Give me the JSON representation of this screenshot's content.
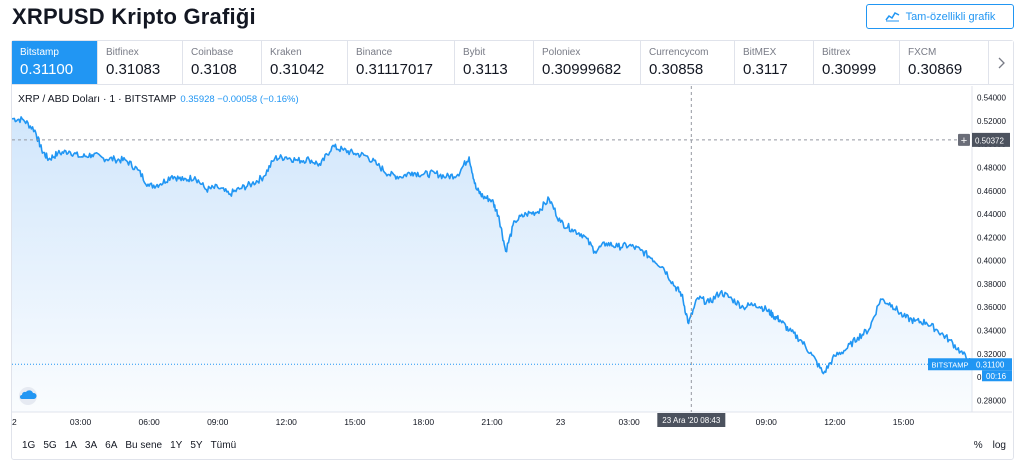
{
  "page": {
    "title": "XRPUSD Kripto Grafiği",
    "full_chart_button": "Tam-özellikli grafik"
  },
  "exchanges": [
    {
      "name": "Bitstamp",
      "price": "0.31100",
      "active": true
    },
    {
      "name": "Bitfinex",
      "price": "0.31083"
    },
    {
      "name": "Coinbase",
      "price": "0.3108"
    },
    {
      "name": "Kraken",
      "price": "0.31042"
    },
    {
      "name": "Binance",
      "price": "0.31117017"
    },
    {
      "name": "Bybit",
      "price": "0.3113"
    },
    {
      "name": "Poloniex",
      "price": "0.30999682"
    },
    {
      "name": "Currencycom",
      "price": "0.30858"
    },
    {
      "name": "BitMEX",
      "price": "0.3117"
    },
    {
      "name": "Bittrex",
      "price": "0.30999"
    },
    {
      "name": "FXCM",
      "price": "0.30869"
    }
  ],
  "legend": {
    "symbol": "XRP / ABD Doları · 1 · BITSTAMP",
    "values": "0.35928 −0.00058 (−0.16%)"
  },
  "timeframes": [
    "1G",
    "5G",
    "1A",
    "3A",
    "6A",
    "Bu sene",
    "1Y",
    "5Y",
    "Tümü"
  ],
  "bottom_right": {
    "percent": "%",
    "log": "log"
  },
  "colors": {
    "accent": "#2196f3",
    "line": "#2196f3",
    "area_top": "#cfe5fb"
  },
  "icons": {
    "full_chart": "chart-line-icon",
    "next": "chevron-right-icon",
    "watermark": "tradingview-cloud-icon"
  },
  "chart_data": {
    "type": "area",
    "title": "",
    "xlabel": "",
    "ylabel": "",
    "ylim": [
      0.27,
      0.55
    ],
    "x_tick_labels": [
      "2",
      "03:00",
      "06:00",
      "09:00",
      "12:00",
      "15:00",
      "18:00",
      "21:00",
      "23",
      "03:00",
      "06:00",
      "09:00",
      "12:00",
      "15:00"
    ],
    "y_tick_labels": [
      "0.54000",
      "0.52000",
      "0.50000",
      "0.48000",
      "0.46000",
      "0.44000",
      "0.42000",
      "0.40000",
      "0.38000",
      "0.36000",
      "0.34000",
      "0.32000",
      "0.30000",
      "0.28000"
    ],
    "y_ticks": [
      0.54,
      0.52,
      0.5,
      0.48,
      0.46,
      0.44,
      0.42,
      0.4,
      0.38,
      0.36,
      0.34,
      0.32,
      0.3,
      0.28
    ],
    "series": [
      {
        "x_hours": [
          0,
          0.5,
          1,
          1.3,
          1.6,
          2,
          2.5,
          3,
          3.5,
          4,
          4.5,
          5,
          5.5,
          6,
          6.5,
          7,
          7.5,
          8,
          8.5,
          9,
          9.5,
          10,
          10.5,
          11,
          11.5,
          12,
          12.5,
          13,
          13.5,
          14,
          14.5,
          15,
          15.5,
          16,
          16.5,
          17,
          17.5,
          18,
          18.5,
          19,
          19.5,
          20,
          20.3,
          20.6,
          21,
          21.3,
          21.6,
          22,
          22.5,
          23,
          23.5,
          24,
          24.5,
          25,
          25.5,
          26,
          26.5,
          27,
          27.5,
          28,
          28.5,
          29,
          29.3,
          29.6,
          30,
          30.5,
          31,
          31.5,
          32,
          32.5,
          33,
          33.3,
          33.6,
          34,
          34.5,
          35,
          35.5,
          36,
          36.5,
          37,
          37.5,
          38,
          38.5,
          39,
          39.5,
          40,
          40.5,
          41,
          41.5,
          42
        ],
        "values": [
          0.522,
          0.521,
          0.512,
          0.495,
          0.487,
          0.492,
          0.494,
          0.489,
          0.491,
          0.488,
          0.487,
          0.486,
          0.478,
          0.464,
          0.466,
          0.473,
          0.469,
          0.472,
          0.461,
          0.463,
          0.457,
          0.462,
          0.466,
          0.472,
          0.488,
          0.489,
          0.486,
          0.487,
          0.482,
          0.498,
          0.495,
          0.492,
          0.49,
          0.482,
          0.474,
          0.472,
          0.476,
          0.474,
          0.475,
          0.472,
          0.474,
          0.489,
          0.462,
          0.455,
          0.452,
          0.438,
          0.408,
          0.434,
          0.44,
          0.442,
          0.453,
          0.433,
          0.427,
          0.422,
          0.408,
          0.415,
          0.412,
          0.413,
          0.409,
          0.402,
          0.394,
          0.378,
          0.371,
          0.346,
          0.368,
          0.364,
          0.373,
          0.367,
          0.36,
          0.363,
          0.358,
          0.353,
          0.349,
          0.34,
          0.332,
          0.319,
          0.303,
          0.318,
          0.324,
          0.334,
          0.341,
          0.367,
          0.362,
          0.352,
          0.348,
          0.347,
          0.34,
          0.332,
          0.322,
          0.311
        ]
      }
    ],
    "current_price_label": "BITSTAMP",
    "current_price": "0.31100",
    "countdown": "00:16",
    "crosshair_price": "0.50372",
    "crosshair_time": "23 Ara '20   08:43",
    "grid": false,
    "x_axis": "hours from first tick",
    "x_range": [
      0,
      42
    ]
  }
}
